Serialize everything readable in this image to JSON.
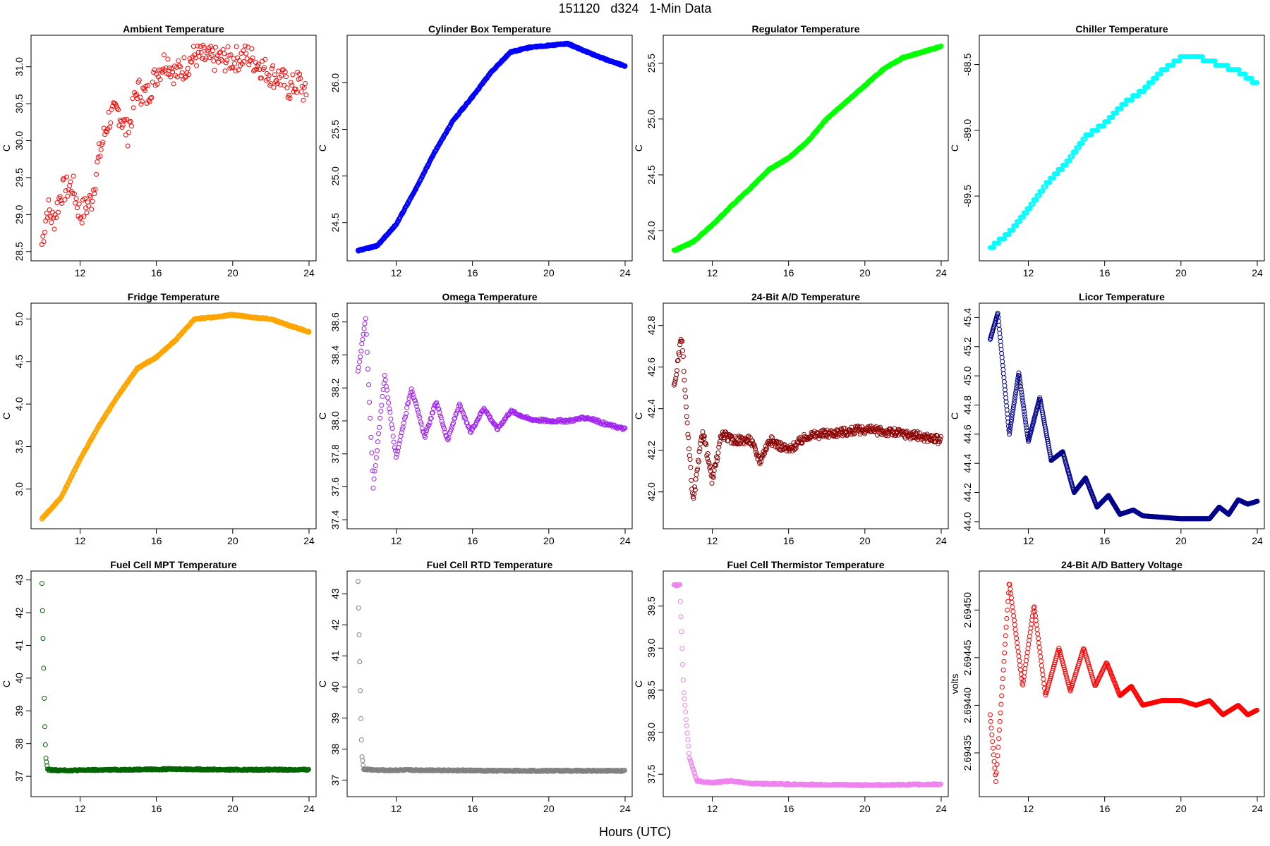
{
  "page": {
    "title": "151120   d324   1-Min Data",
    "xlabel": "Hours (UTC)"
  },
  "chart_data": [
    {
      "type": "scatter",
      "title": "Ambient Temperature",
      "ylabel": "C",
      "color": "#ff0000",
      "xlim": [
        9.8,
        24
      ],
      "ylim": [
        28.45,
        31.35
      ],
      "xticks": [
        12,
        16,
        20,
        24
      ],
      "yticks": [
        28.5,
        29.0,
        29.5,
        30.0,
        30.5,
        31.0
      ],
      "ytick_labels": [
        "28.5",
        "29.0",
        "29.5",
        "30.0",
        "30.5",
        "31.0"
      ],
      "curve": [
        [
          10,
          28.6
        ],
        [
          10.3,
          29.1
        ],
        [
          10.6,
          28.9
        ],
        [
          11,
          29.3
        ],
        [
          11.6,
          29.4
        ],
        [
          12,
          29.0
        ],
        [
          12.6,
          29.2
        ],
        [
          13,
          29.8
        ],
        [
          13.5,
          30.3
        ],
        [
          14,
          30.4
        ],
        [
          14.5,
          30.1
        ],
        [
          15,
          30.7
        ],
        [
          15.5,
          30.6
        ],
        [
          16,
          30.9
        ],
        [
          16.5,
          31.1
        ],
        [
          17,
          30.9
        ],
        [
          17.5,
          31.0
        ],
        [
          18,
          31.15
        ],
        [
          19,
          31.1
        ],
        [
          20,
          31.1
        ],
        [
          20.8,
          31.15
        ],
        [
          21.5,
          31.0
        ],
        [
          22,
          30.9
        ],
        [
          22.5,
          30.85
        ],
        [
          23,
          30.7
        ],
        [
          23.5,
          30.8
        ],
        [
          23.9,
          30.55
        ]
      ],
      "noise": 0.18,
      "step": 0.05
    },
    {
      "type": "scatter",
      "title": "Cylinder Box Temperature",
      "ylabel": "C",
      "color": "#0000ff",
      "xlim": [
        9.8,
        24
      ],
      "ylim": [
        24.15,
        26.45
      ],
      "xticks": [
        12,
        16,
        20,
        24
      ],
      "yticks": [
        24.5,
        25.0,
        25.5,
        26.0
      ],
      "ytick_labels": [
        "24.5",
        "25.0",
        "25.5",
        "26.0"
      ],
      "curve": [
        [
          10,
          24.2
        ],
        [
          11,
          24.25
        ],
        [
          12,
          24.48
        ],
        [
          13,
          24.85
        ],
        [
          14,
          25.25
        ],
        [
          15,
          25.6
        ],
        [
          16,
          25.85
        ],
        [
          17,
          26.12
        ],
        [
          18,
          26.33
        ],
        [
          19,
          26.38
        ],
        [
          20,
          26.4
        ],
        [
          21,
          26.42
        ],
        [
          22,
          26.33
        ],
        [
          23,
          26.25
        ],
        [
          24,
          26.18
        ]
      ],
      "noise": 0.01,
      "step": 0.02
    },
    {
      "type": "scatter",
      "title": "Regulator Temperature",
      "ylabel": "C",
      "color": "#00ff00",
      "xlim": [
        9.8,
        24
      ],
      "ylim": [
        23.78,
        25.7
      ],
      "xticks": [
        12,
        16,
        20,
        24
      ],
      "yticks": [
        24.0,
        24.5,
        25.0,
        25.5
      ],
      "ytick_labels": [
        "24.0",
        "24.5",
        "25.0",
        "25.5"
      ],
      "curve": [
        [
          10,
          23.82
        ],
        [
          11,
          23.9
        ],
        [
          12,
          24.05
        ],
        [
          13,
          24.22
        ],
        [
          14,
          24.38
        ],
        [
          15,
          24.55
        ],
        [
          16,
          24.65
        ],
        [
          17,
          24.8
        ],
        [
          18,
          25.0
        ],
        [
          19,
          25.15
        ],
        [
          20,
          25.3
        ],
        [
          21,
          25.45
        ],
        [
          22,
          25.55
        ],
        [
          23,
          25.6
        ],
        [
          24,
          25.65
        ]
      ],
      "noise": 0.01,
      "step": 0.02
    },
    {
      "type": "scatter",
      "title": "Chiller Temperature",
      "ylabel": "C",
      "color": "#00ffff",
      "xlim": [
        9.8,
        24
      ],
      "ylim": [
        -89.95,
        -88.32
      ],
      "xticks": [
        12,
        16,
        20,
        24
      ],
      "yticks": [
        -89.5,
        -89.0,
        -88.5
      ],
      "ytick_labels": [
        "-89.5",
        "-89.0",
        "-88.5"
      ],
      "curve": [
        [
          10,
          -89.9
        ],
        [
          11,
          -89.78
        ],
        [
          12,
          -89.6
        ],
        [
          13,
          -89.4
        ],
        [
          14,
          -89.25
        ],
        [
          15,
          -89.05
        ],
        [
          16,
          -88.95
        ],
        [
          17,
          -88.8
        ],
        [
          18,
          -88.7
        ],
        [
          19,
          -88.55
        ],
        [
          20,
          -88.45
        ],
        [
          21,
          -88.45
        ],
        [
          22,
          -88.5
        ],
        [
          23,
          -88.55
        ],
        [
          24,
          -88.65
        ]
      ],
      "noise": 0.0,
      "step": 0.03,
      "quant": 0.033
    },
    {
      "type": "scatter",
      "title": "Fridge Temperature",
      "ylabel": "C",
      "color": "#ffa500",
      "xlim": [
        9.8,
        24
      ],
      "ylim": [
        2.6,
        5.12
      ],
      "xticks": [
        12,
        16,
        20,
        24
      ],
      "yticks": [
        3.0,
        3.5,
        4.0,
        4.5,
        5.0
      ],
      "ytick_labels": [
        "3.0",
        "3.5",
        "4.0",
        "4.5",
        "5.0"
      ],
      "curve": [
        [
          10,
          2.65
        ],
        [
          11,
          2.9
        ],
        [
          12,
          3.35
        ],
        [
          13,
          3.75
        ],
        [
          14,
          4.1
        ],
        [
          15,
          4.42
        ],
        [
          16,
          4.55
        ],
        [
          17,
          4.75
        ],
        [
          18,
          5.0
        ],
        [
          19,
          5.02
        ],
        [
          20,
          5.05
        ],
        [
          21,
          5.02
        ],
        [
          22,
          5.0
        ],
        [
          23,
          4.92
        ],
        [
          24,
          4.85
        ]
      ],
      "noise": 0.01,
      "step": 0.02
    },
    {
      "type": "scatter",
      "title": "Omega Temperature",
      "ylabel": "C",
      "color": "#a020f0",
      "xlim": [
        9.8,
        24
      ],
      "ylim": [
        37.38,
        38.68
      ],
      "xticks": [
        12,
        16,
        20,
        24
      ],
      "yticks": [
        37.4,
        37.6,
        37.8,
        38.0,
        38.2,
        38.4,
        38.6
      ],
      "ytick_labels": [
        "37.4",
        "37.6",
        "37.8",
        "38.0",
        "38.2",
        "38.4",
        "38.6"
      ],
      "curve": [
        [
          10,
          38.3
        ],
        [
          10.4,
          38.62
        ],
        [
          10.8,
          37.6
        ],
        [
          11.4,
          38.28
        ],
        [
          12,
          37.78
        ],
        [
          12.8,
          38.2
        ],
        [
          13.5,
          37.9
        ],
        [
          14.1,
          38.12
        ],
        [
          14.7,
          37.88
        ],
        [
          15.3,
          38.1
        ],
        [
          15.9,
          37.93
        ],
        [
          16.6,
          38.08
        ],
        [
          17.3,
          37.95
        ],
        [
          18,
          38.06
        ],
        [
          19,
          38.01
        ],
        [
          20,
          38.0
        ],
        [
          21,
          38.0
        ],
        [
          22,
          38.02
        ],
        [
          23,
          37.98
        ],
        [
          24,
          37.95
        ]
      ],
      "noise": 0.02,
      "step": 0.04
    },
    {
      "type": "scatter",
      "title": "24-Bit A/D Temperature",
      "ylabel": "C",
      "color": "#8b0000",
      "xlim": [
        9.8,
        24
      ],
      "ylim": [
        41.85,
        42.88
      ],
      "xticks": [
        12,
        16,
        20,
        24
      ],
      "yticks": [
        42.0,
        42.2,
        42.4,
        42.6,
        42.8
      ],
      "ytick_labels": [
        "42.0",
        "42.2",
        "42.4",
        "42.6",
        "42.8"
      ],
      "curve": [
        [
          10,
          42.5
        ],
        [
          10.4,
          42.75
        ],
        [
          10.7,
          42.3
        ],
        [
          11,
          41.95
        ],
        [
          11.5,
          42.3
        ],
        [
          12,
          42.05
        ],
        [
          12.5,
          42.28
        ],
        [
          13,
          42.25
        ],
        [
          14,
          42.25
        ],
        [
          14.5,
          42.15
        ],
        [
          15,
          42.25
        ],
        [
          16,
          42.2
        ],
        [
          17,
          42.27
        ],
        [
          18,
          42.28
        ],
        [
          20,
          42.3
        ],
        [
          22,
          42.28
        ],
        [
          24,
          42.25
        ]
      ],
      "noise": 0.06,
      "step": 0.03
    },
    {
      "type": "scatter",
      "title": "Licor Temperature",
      "ylabel": "C",
      "color": "#00008b",
      "xlim": [
        9.8,
        24
      ],
      "ylim": [
        43.99,
        45.46
      ],
      "xticks": [
        12,
        16,
        20,
        24
      ],
      "yticks": [
        44.0,
        44.2,
        44.4,
        44.6,
        44.8,
        45.0,
        45.2,
        45.4
      ],
      "ytick_labels": [
        "44.0",
        "44.2",
        "44.4",
        "44.6",
        "44.8",
        "45.0",
        "45.2",
        "45.4"
      ],
      "curve": [
        [
          10,
          45.25
        ],
        [
          10.4,
          45.43
        ],
        [
          11,
          44.6
        ],
        [
          11.5,
          45.02
        ],
        [
          12,
          44.55
        ],
        [
          12.6,
          44.85
        ],
        [
          13.2,
          44.42
        ],
        [
          13.8,
          44.48
        ],
        [
          14.4,
          44.2
        ],
        [
          15,
          44.3
        ],
        [
          15.6,
          44.1
        ],
        [
          16.2,
          44.18
        ],
        [
          16.8,
          44.05
        ],
        [
          17.5,
          44.08
        ],
        [
          18,
          44.04
        ],
        [
          19,
          44.03
        ],
        [
          20,
          44.02
        ],
        [
          21,
          44.02
        ],
        [
          21.5,
          44.02
        ],
        [
          22,
          44.1
        ],
        [
          22.5,
          44.05
        ],
        [
          23,
          44.15
        ],
        [
          23.5,
          44.12
        ],
        [
          24,
          44.14
        ]
      ],
      "noise": 0.0,
      "step": 0.02
    },
    {
      "type": "scatter",
      "title": "Fuel Cell MPT Temperature",
      "ylabel": "C",
      "color": "#006400",
      "xlim": [
        9.8,
        24
      ],
      "ylim": [
        36.55,
        43.1
      ],
      "xticks": [
        12,
        16,
        20,
        24
      ],
      "yticks": [
        37,
        38,
        39,
        40,
        41,
        42,
        43
      ],
      "ytick_labels": [
        "37",
        "38",
        "39",
        "40",
        "41",
        "42",
        "43"
      ],
      "curve": [
        [
          10,
          42.9
        ],
        [
          10.05,
          41.5
        ],
        [
          10.1,
          40
        ],
        [
          10.15,
          38.5
        ],
        [
          10.2,
          37.6
        ],
        [
          10.3,
          37.2
        ],
        [
          11,
          37.18
        ],
        [
          14,
          37.2
        ],
        [
          17,
          37.22
        ],
        [
          20,
          37.2
        ],
        [
          24,
          37.2
        ]
      ],
      "noise": 0.01,
      "step": 0.03
    },
    {
      "type": "scatter",
      "title": "Fuel Cell RTD Temperature",
      "ylabel": "C",
      "color": "#808080",
      "xlim": [
        9.8,
        24
      ],
      "ylim": [
        36.65,
        43.55
      ],
      "xticks": [
        12,
        16,
        20,
        24
      ],
      "yticks": [
        37,
        38,
        39,
        40,
        41,
        42,
        43
      ],
      "ytick_labels": [
        "37",
        "38",
        "39",
        "40",
        "41",
        "42",
        "43"
      ],
      "curve": [
        [
          10,
          43.4
        ],
        [
          10.05,
          42
        ],
        [
          10.1,
          40.5
        ],
        [
          10.15,
          39
        ],
        [
          10.2,
          37.8
        ],
        [
          10.3,
          37.35
        ],
        [
          11,
          37.32
        ],
        [
          14,
          37.32
        ],
        [
          17,
          37.3
        ],
        [
          20,
          37.3
        ],
        [
          24,
          37.3
        ]
      ],
      "noise": 0.01,
      "step": 0.03
    },
    {
      "type": "scatter",
      "title": "Fuel Cell Thermistor Temperature",
      "ylabel": "C",
      "color": "#ee82ee",
      "xlim": [
        9.8,
        24
      ],
      "ylim": [
        37.3,
        39.85
      ],
      "xticks": [
        12,
        16,
        20,
        24
      ],
      "yticks": [
        37.5,
        38.0,
        38.5,
        39.0,
        39.5
      ],
      "ytick_labels": [
        "37.5",
        "38.0",
        "38.5",
        "39.0",
        "39.5"
      ],
      "curve": [
        [
          10,
          39.75
        ],
        [
          10.3,
          39.75
        ],
        [
          10.5,
          38.5
        ],
        [
          10.8,
          37.7
        ],
        [
          11.2,
          37.42
        ],
        [
          12,
          37.4
        ],
        [
          13,
          37.42
        ],
        [
          14,
          37.39
        ],
        [
          16,
          37.38
        ],
        [
          20,
          37.37
        ],
        [
          24,
          37.38
        ]
      ],
      "noise": 0.01,
      "step": 0.03
    },
    {
      "type": "scatter",
      "title": "24-Bit A/D Battery Voltage",
      "ylabel": "volts",
      "color": "#ff0000",
      "xlim": [
        9.8,
        24
      ],
      "ylim": [
        2.69431,
        2.694535
      ],
      "xticks": [
        12,
        16,
        20,
        24
      ],
      "yticks": [
        2.69435,
        2.6944,
        2.69445,
        2.6945
      ],
      "ytick_labels": [
        "2.69435",
        "2.69440",
        "2.69445",
        "2.69450"
      ],
      "curve": [
        [
          10,
          2.69439
        ],
        [
          10.3,
          2.69432
        ],
        [
          11,
          2.69453
        ],
        [
          11.7,
          2.69442
        ],
        [
          12.3,
          2.694505
        ],
        [
          12.9,
          2.69441
        ],
        [
          13.6,
          2.69446
        ],
        [
          14.2,
          2.694415
        ],
        [
          14.9,
          2.69446
        ],
        [
          15.5,
          2.69442
        ],
        [
          16.1,
          2.694445
        ],
        [
          16.8,
          2.69441
        ],
        [
          17.4,
          2.69442
        ],
        [
          18,
          2.6944
        ],
        [
          19,
          2.694405
        ],
        [
          20,
          2.694405
        ],
        [
          20.8,
          2.6944
        ],
        [
          21.5,
          2.694405
        ],
        [
          22.2,
          2.69439
        ],
        [
          23,
          2.6944
        ],
        [
          23.5,
          2.69439
        ],
        [
          24,
          2.694395
        ]
      ],
      "noise": 0.0,
      "step": 0.03
    }
  ]
}
